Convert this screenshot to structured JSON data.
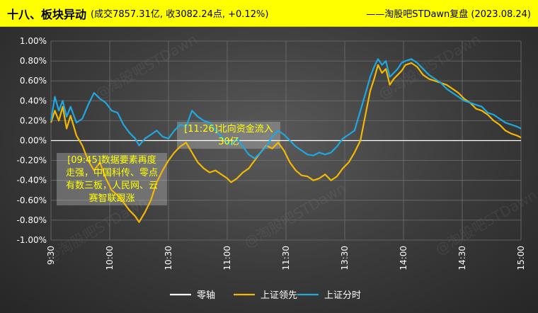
{
  "header": {
    "title": "十八、板块异动",
    "subtitle": "(成交7857.31亿, 收3082.24点, +0.12%)",
    "source": "——淘股吧STDawn复盘 (2023.08.24)"
  },
  "watermark": "@淘股吧STDawn",
  "colors": {
    "background": "#3a3a3a",
    "zero": "#ffffff",
    "lead": "#f2b705",
    "index": "#1fa8e0",
    "annotation_text": "#ffff00",
    "header": "#ffff00"
  },
  "chart_data": {
    "type": "line",
    "x_ticks": [
      "9:30",
      "10:00",
      "10:30",
      "11:00",
      "11:30",
      "13:30",
      "14:00",
      "14:30",
      "15:00"
    ],
    "y_ticks": [
      "1.00%",
      "0.80%",
      "0.60%",
      "0.40%",
      "0.20%",
      "0.00%",
      "-0.20%",
      "-0.40%",
      "-0.60%",
      "-0.80%",
      "-1.00%"
    ],
    "ylim": [
      -1.0,
      1.0
    ],
    "x_unit": "trading minutes since 9:30 (0–240)",
    "legend": [
      "零轴",
      "上证领先",
      "上证分时"
    ],
    "legend_position": "bottom",
    "series": [
      {
        "name": "零轴",
        "color": "#ffffff",
        "points": [
          [
            0,
            0
          ],
          [
            240,
            0
          ]
        ]
      },
      {
        "name": "上证领先",
        "color": "#f2b705",
        "points": [
          [
            0,
            0.18
          ],
          [
            2,
            0.3
          ],
          [
            4,
            0.2
          ],
          [
            6,
            0.34
          ],
          [
            8,
            0.12
          ],
          [
            10,
            0.25
          ],
          [
            13,
            0.05
          ],
          [
            16,
            -0.05
          ],
          [
            19,
            -0.2
          ],
          [
            22,
            -0.3
          ],
          [
            25,
            -0.22
          ],
          [
            28,
            -0.38
          ],
          [
            31,
            -0.5
          ],
          [
            34,
            -0.55
          ],
          [
            37,
            -0.62
          ],
          [
            40,
            -0.7
          ],
          [
            43,
            -0.76
          ],
          [
            45,
            -0.82
          ],
          [
            48,
            -0.72
          ],
          [
            51,
            -0.6
          ],
          [
            54,
            -0.42
          ],
          [
            57,
            -0.3
          ],
          [
            60,
            -0.2
          ],
          [
            63,
            -0.12
          ],
          [
            66,
            -0.06
          ],
          [
            69,
            -0.02
          ],
          [
            72,
            -0.12
          ],
          [
            75,
            -0.22
          ],
          [
            78,
            -0.28
          ],
          [
            81,
            -0.32
          ],
          [
            84,
            -0.3
          ],
          [
            87,
            -0.34
          ],
          [
            90,
            -0.38
          ],
          [
            92,
            -0.42
          ],
          [
            95,
            -0.38
          ],
          [
            98,
            -0.32
          ],
          [
            101,
            -0.28
          ],
          [
            104,
            -0.2
          ],
          [
            107,
            -0.12
          ],
          [
            110,
            -0.05
          ],
          [
            113,
            -0.08
          ],
          [
            116,
            -0.02
          ],
          [
            119,
            -0.1
          ],
          [
            122,
            -0.22
          ],
          [
            125,
            -0.3
          ],
          [
            128,
            -0.35
          ],
          [
            131,
            -0.36
          ],
          [
            134,
            -0.4
          ],
          [
            137,
            -0.38
          ],
          [
            140,
            -0.34
          ],
          [
            143,
            -0.4
          ],
          [
            146,
            -0.36
          ],
          [
            149,
            -0.28
          ],
          [
            152,
            -0.22
          ],
          [
            155,
            -0.12
          ],
          [
            158,
            0.0
          ],
          [
            161,
            0.3
          ],
          [
            163,
            0.5
          ],
          [
            165,
            0.62
          ],
          [
            167,
            0.76
          ],
          [
            169,
            0.68
          ],
          [
            171,
            0.72
          ],
          [
            173,
            0.56
          ],
          [
            175,
            0.62
          ],
          [
            177,
            0.66
          ],
          [
            179,
            0.7
          ],
          [
            181,
            0.76
          ],
          [
            184,
            0.78
          ],
          [
            187,
            0.74
          ],
          [
            190,
            0.66
          ],
          [
            193,
            0.62
          ],
          [
            196,
            0.6
          ],
          [
            199,
            0.58
          ],
          [
            202,
            0.56
          ],
          [
            205,
            0.52
          ],
          [
            208,
            0.48
          ],
          [
            211,
            0.42
          ],
          [
            214,
            0.38
          ],
          [
            217,
            0.32
          ],
          [
            220,
            0.3
          ],
          [
            223,
            0.26
          ],
          [
            226,
            0.2
          ],
          [
            229,
            0.16
          ],
          [
            232,
            0.1
          ],
          [
            235,
            0.07
          ],
          [
            238,
            0.05
          ],
          [
            240,
            0.03
          ]
        ]
      },
      {
        "name": "上证分时",
        "color": "#1fa8e0",
        "points": [
          [
            0,
            0.2
          ],
          [
            2,
            0.44
          ],
          [
            4,
            0.3
          ],
          [
            6,
            0.4
          ],
          [
            8,
            0.24
          ],
          [
            10,
            0.34
          ],
          [
            13,
            0.18
          ],
          [
            16,
            0.22
          ],
          [
            19,
            0.36
          ],
          [
            22,
            0.48
          ],
          [
            25,
            0.42
          ],
          [
            28,
            0.38
          ],
          [
            31,
            0.3
          ],
          [
            34,
            0.28
          ],
          [
            37,
            0.16
          ],
          [
            40,
            0.08
          ],
          [
            43,
            0.02
          ],
          [
            45,
            -0.05
          ],
          [
            48,
            0.02
          ],
          [
            51,
            0.06
          ],
          [
            54,
            0.1
          ],
          [
            57,
            0.04
          ],
          [
            60,
            0.02
          ],
          [
            63,
            0.1
          ],
          [
            66,
            0.16
          ],
          [
            69,
            0.14
          ],
          [
            72,
            0.3
          ],
          [
            75,
            0.24
          ],
          [
            78,
            0.2
          ],
          [
            81,
            0.18
          ],
          [
            84,
            0.1
          ],
          [
            87,
            0.04
          ],
          [
            90,
            -0.02
          ],
          [
            92,
            -0.04
          ],
          [
            95,
            0.02
          ],
          [
            98,
            -0.06
          ],
          [
            101,
            -0.14
          ],
          [
            104,
            -0.18
          ],
          [
            107,
            -0.12
          ],
          [
            110,
            -0.06
          ],
          [
            113,
            0.04
          ],
          [
            116,
            0.1
          ],
          [
            119,
            0.06
          ],
          [
            122,
            0.0
          ],
          [
            125,
            -0.06
          ],
          [
            128,
            -0.1
          ],
          [
            131,
            -0.14
          ],
          [
            134,
            -0.15
          ],
          [
            137,
            -0.12
          ],
          [
            140,
            -0.14
          ],
          [
            143,
            -0.12
          ],
          [
            146,
            -0.06
          ],
          [
            149,
            0.02
          ],
          [
            152,
            0.06
          ],
          [
            155,
            0.1
          ],
          [
            158,
            0.3
          ],
          [
            161,
            0.5
          ],
          [
            163,
            0.64
          ],
          [
            165,
            0.74
          ],
          [
            167,
            0.82
          ],
          [
            169,
            0.76
          ],
          [
            171,
            0.8
          ],
          [
            173,
            0.64
          ],
          [
            175,
            0.68
          ],
          [
            177,
            0.72
          ],
          [
            179,
            0.78
          ],
          [
            181,
            0.8
          ],
          [
            184,
            0.82
          ],
          [
            187,
            0.78
          ],
          [
            190,
            0.72
          ],
          [
            193,
            0.66
          ],
          [
            196,
            0.62
          ],
          [
            199,
            0.58
          ],
          [
            202,
            0.52
          ],
          [
            205,
            0.48
          ],
          [
            208,
            0.44
          ],
          [
            211,
            0.4
          ],
          [
            214,
            0.38
          ],
          [
            217,
            0.36
          ],
          [
            220,
            0.34
          ],
          [
            223,
            0.28
          ],
          [
            226,
            0.26
          ],
          [
            229,
            0.22
          ],
          [
            232,
            0.18
          ],
          [
            235,
            0.16
          ],
          [
            238,
            0.14
          ],
          [
            240,
            0.12
          ]
        ]
      }
    ],
    "annotations": [
      {
        "id": "ann1",
        "text_lines": [
          "[09:45]数据要素再度",
          "走强，中国科传、零点",
          "有数三板，人民网、云",
          "赛智联跟涨"
        ],
        "at_minute": 15
      },
      {
        "id": "ann2",
        "text_lines": [
          "[11:26]北向资金流入",
          "30亿"
        ],
        "at_minute": 116
      }
    ]
  }
}
